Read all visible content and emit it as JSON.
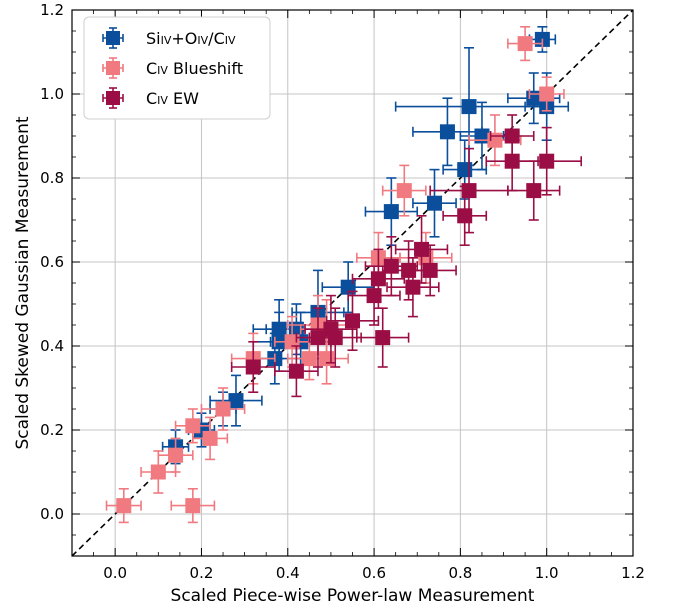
{
  "chart_data": {
    "type": "scatter",
    "xlabel": "Scaled Piece-wise Power-law Measurement",
    "ylabel": "Scaled Skewed Gaussian Measurement",
    "xlim": [
      -0.1,
      1.2
    ],
    "ylim": [
      -0.1,
      1.2
    ],
    "xticks": [
      0.0,
      0.2,
      0.4,
      0.6,
      0.8,
      1.0,
      1.2
    ],
    "yticks": [
      0.0,
      0.2,
      0.4,
      0.6,
      0.8,
      1.0,
      1.2
    ],
    "xtick_labels": [
      "0.0",
      "0.2",
      "0.4",
      "0.6",
      "0.8",
      "1.0",
      "1.2"
    ],
    "ytick_labels": [
      "0.0",
      "0.2",
      "0.4",
      "0.6",
      "0.8",
      "1.0",
      "1.2"
    ],
    "grid": true,
    "legend_position": "top-left",
    "reference_line": "y = x (dashed)",
    "series": [
      {
        "name": "Si_IV+O_IV/C_IV",
        "legend": {
          "parts": [
            [
              "Si",
              false
            ],
            [
              "IV",
              true
            ],
            [
              "+O",
              false
            ],
            [
              "IV",
              true
            ],
            [
              "/C",
              false
            ],
            [
              "IV",
              true
            ]
          ]
        },
        "color": "#0b4f9c",
        "points": [
          {
            "x": 0.99,
            "y": 1.13,
            "xerr": 0.03,
            "yerr": 0.03
          },
          {
            "x": 0.97,
            "y": 0.99,
            "xerr": 0.06,
            "yerr": 0.06
          },
          {
            "x": 1.0,
            "y": 0.97,
            "xerr": 0.05,
            "yerr": 0.08
          },
          {
            "x": 0.82,
            "y": 0.97,
            "xerr": 0.17,
            "yerr": 0.14
          },
          {
            "x": 0.77,
            "y": 0.91,
            "xerr": 0.08,
            "yerr": 0.08
          },
          {
            "x": 0.85,
            "y": 0.9,
            "xerr": 0.05,
            "yerr": 0.08
          },
          {
            "x": 0.81,
            "y": 0.82,
            "xerr": 0.05,
            "yerr": 0.07
          },
          {
            "x": 0.74,
            "y": 0.74,
            "xerr": 0.05,
            "yerr": 0.08
          },
          {
            "x": 0.64,
            "y": 0.72,
            "xerr": 0.06,
            "yerr": 0.08
          },
          {
            "x": 0.54,
            "y": 0.54,
            "xerr": 0.06,
            "yerr": 0.06
          },
          {
            "x": 0.47,
            "y": 0.48,
            "xerr": 0.06,
            "yerr": 0.1
          },
          {
            "x": 0.42,
            "y": 0.44,
            "xerr": 0.07,
            "yerr": 0.06
          },
          {
            "x": 0.38,
            "y": 0.44,
            "xerr": 0.06,
            "yerr": 0.07
          },
          {
            "x": 0.43,
            "y": 0.41,
            "xerr": 0.07,
            "yerr": 0.07
          },
          {
            "x": 0.38,
            "y": 0.41,
            "xerr": 0.06,
            "yerr": 0.07
          },
          {
            "x": 0.37,
            "y": 0.37,
            "xerr": 0.06,
            "yerr": 0.06
          },
          {
            "x": 0.28,
            "y": 0.27,
            "xerr": 0.06,
            "yerr": 0.06
          },
          {
            "x": 0.25,
            "y": 0.25,
            "xerr": 0.03,
            "yerr": 0.04
          },
          {
            "x": 0.2,
            "y": 0.2,
            "xerr": 0.03,
            "yerr": 0.04
          },
          {
            "x": 0.14,
            "y": 0.16,
            "xerr": 0.03,
            "yerr": 0.04
          }
        ]
      },
      {
        "name": "C_IV Blueshift",
        "legend": {
          "parts": [
            [
              "C",
              false
            ],
            [
              "IV",
              true
            ],
            [
              " Blueshift",
              false
            ]
          ]
        },
        "color": "#f07a80",
        "points": [
          {
            "x": 0.95,
            "y": 1.12,
            "xerr": 0.04,
            "yerr": 0.04
          },
          {
            "x": 1.0,
            "y": 1.0,
            "xerr": 0.04,
            "yerr": 0.04
          },
          {
            "x": 0.88,
            "y": 0.89,
            "xerr": 0.06,
            "yerr": 0.06
          },
          {
            "x": 0.67,
            "y": 0.77,
            "xerr": 0.05,
            "yerr": 0.06
          },
          {
            "x": 0.61,
            "y": 0.61,
            "xerr": 0.05,
            "yerr": 0.06
          },
          {
            "x": 0.72,
            "y": 0.61,
            "xerr": 0.06,
            "yerr": 0.06
          },
          {
            "x": 0.47,
            "y": 0.45,
            "xerr": 0.07,
            "yerr": 0.07
          },
          {
            "x": 0.49,
            "y": 0.44,
            "xerr": 0.06,
            "yerr": 0.07
          },
          {
            "x": 0.41,
            "y": 0.41,
            "xerr": 0.04,
            "yerr": 0.06
          },
          {
            "x": 0.45,
            "y": 0.37,
            "xerr": 0.05,
            "yerr": 0.05
          },
          {
            "x": 0.49,
            "y": 0.37,
            "xerr": 0.05,
            "yerr": 0.06
          },
          {
            "x": 0.32,
            "y": 0.37,
            "xerr": 0.05,
            "yerr": 0.06
          },
          {
            "x": 0.25,
            "y": 0.25,
            "xerr": 0.05,
            "yerr": 0.05
          },
          {
            "x": 0.18,
            "y": 0.21,
            "xerr": 0.04,
            "yerr": 0.04
          },
          {
            "x": 0.22,
            "y": 0.18,
            "xerr": 0.04,
            "yerr": 0.05
          },
          {
            "x": 0.14,
            "y": 0.14,
            "xerr": 0.04,
            "yerr": 0.04
          },
          {
            "x": 0.1,
            "y": 0.1,
            "xerr": 0.04,
            "yerr": 0.05
          },
          {
            "x": 0.02,
            "y": 0.02,
            "xerr": 0.04,
            "yerr": 0.04
          },
          {
            "x": 0.18,
            "y": 0.02,
            "xerr": 0.05,
            "yerr": 0.04
          }
        ]
      },
      {
        "name": "C_IV EW",
        "legend": {
          "parts": [
            [
              "C",
              false
            ],
            [
              "IV",
              true
            ],
            [
              " EW",
              false
            ]
          ]
        },
        "color": "#9b0e45",
        "points": [
          {
            "x": 0.92,
            "y": 0.9,
            "xerr": 0.05,
            "yerr": 0.05
          },
          {
            "x": 1.0,
            "y": 0.84,
            "xerr": 0.08,
            "yerr": 0.08
          },
          {
            "x": 0.92,
            "y": 0.84,
            "xerr": 0.06,
            "yerr": 0.07
          },
          {
            "x": 0.82,
            "y": 0.77,
            "xerr": 0.09,
            "yerr": 0.1
          },
          {
            "x": 0.97,
            "y": 0.77,
            "xerr": 0.06,
            "yerr": 0.07
          },
          {
            "x": 0.81,
            "y": 0.71,
            "xerr": 0.05,
            "yerr": 0.07
          },
          {
            "x": 0.71,
            "y": 0.63,
            "xerr": 0.06,
            "yerr": 0.08
          },
          {
            "x": 0.68,
            "y": 0.58,
            "xerr": 0.06,
            "yerr": 0.07
          },
          {
            "x": 0.73,
            "y": 0.58,
            "xerr": 0.06,
            "yerr": 0.06
          },
          {
            "x": 0.64,
            "y": 0.59,
            "xerr": 0.06,
            "yerr": 0.07
          },
          {
            "x": 0.61,
            "y": 0.56,
            "xerr": 0.06,
            "yerr": 0.07
          },
          {
            "x": 0.69,
            "y": 0.54,
            "xerr": 0.06,
            "yerr": 0.07
          },
          {
            "x": 0.6,
            "y": 0.52,
            "xerr": 0.06,
            "yerr": 0.07
          },
          {
            "x": 0.55,
            "y": 0.46,
            "xerr": 0.06,
            "yerr": 0.07
          },
          {
            "x": 0.47,
            "y": 0.42,
            "xerr": 0.05,
            "yerr": 0.07
          },
          {
            "x": 0.51,
            "y": 0.42,
            "xerr": 0.06,
            "yerr": 0.07
          },
          {
            "x": 0.5,
            "y": 0.44,
            "xerr": 0.06,
            "yerr": 0.08
          },
          {
            "x": 0.62,
            "y": 0.42,
            "xerr": 0.06,
            "yerr": 0.07
          },
          {
            "x": 0.32,
            "y": 0.35,
            "xerr": 0.05,
            "yerr": 0.06
          },
          {
            "x": 0.42,
            "y": 0.34,
            "xerr": 0.05,
            "yerr": 0.06
          }
        ]
      }
    ]
  }
}
